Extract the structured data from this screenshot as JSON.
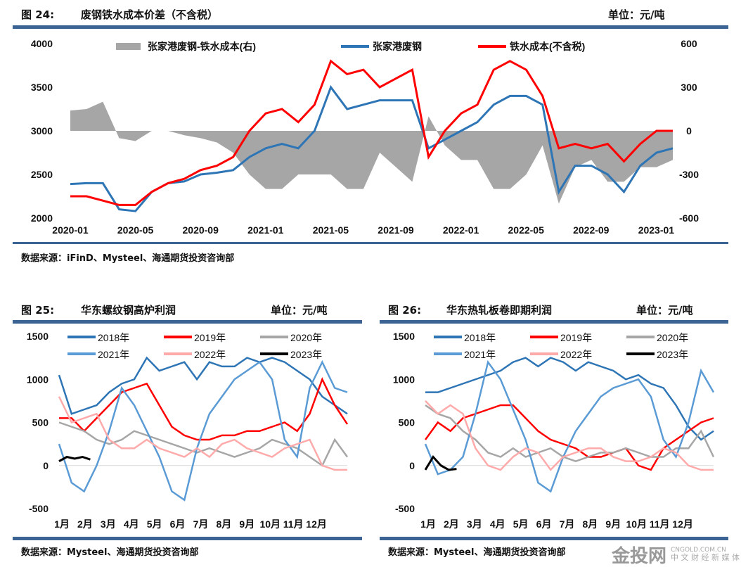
{
  "fig24": {
    "title": "图 24:",
    "name": "废钢铁水成本价差（不含税）",
    "unit": "单位：元/吨",
    "source": "数据来源：iFinD、Mysteel、海通期货投资咨询部"
  },
  "fig25": {
    "title": "图 25:",
    "name": "华东螺纹钢高炉利润",
    "unit": "单位：元/吨",
    "source": "数据来源：Mysteel、海通期货投资咨询部"
  },
  "fig26": {
    "title": "图 26:",
    "name": "华东热轧板卷即期利润",
    "unit": "单位：元/吨",
    "source": "数据来源：Mysteel、海通期货投资咨询部"
  },
  "watermark": {
    "logo": "金投网",
    "url": "CNGOLD.COM.CN",
    "tagline": "中 文 财 经 新 媒 体"
  },
  "colors": {
    "blue": "#2e75b6",
    "red": "#ff0000",
    "gray": "#a6a6a6",
    "lightblue": "#5b9bd5",
    "pink": "#ffaaaa",
    "black": "#000000"
  },
  "chart_data": [
    {
      "type": "line",
      "title": "废钢铁水成本价差（不含税）",
      "x_ticks": [
        "2020-01",
        "2020-05",
        "2020-09",
        "2021-01",
        "2021-05",
        "2021-09",
        "2022-01",
        "2022-05",
        "2022-09",
        "2023-01"
      ],
      "ylim": [
        2000,
        4000
      ],
      "y_ticks": [
        "2000",
        "2500",
        "3000",
        "3500",
        "4000"
      ],
      "y2lim": [
        -600,
        600
      ],
      "y2_ticks": [
        "-600",
        "-300",
        "0",
        "300",
        "600"
      ],
      "series": [
        {
          "name": "张家港废钢-铁水成本(右)",
          "kind": "area",
          "axis": "right",
          "values": [
            140,
            150,
            200,
            -50,
            -70,
            0,
            0,
            -30,
            -50,
            -80,
            -150,
            -300,
            -400,
            -400,
            -300,
            -300,
            -300,
            -400,
            -400,
            -150,
            -250,
            -350,
            100,
            -100,
            -200,
            -200,
            -400,
            -400,
            -300,
            -100,
            -500,
            -250,
            -200,
            -350,
            -350,
            -250,
            -250,
            -200
          ]
        },
        {
          "name": "张家港废钢",
          "kind": "line",
          "axis": "left",
          "values": [
            2390,
            2400,
            2400,
            2100,
            2080,
            2300,
            2400,
            2420,
            2500,
            2520,
            2550,
            2700,
            2800,
            2850,
            2800,
            3000,
            3500,
            3250,
            3300,
            3350,
            3350,
            3350,
            2800,
            2900,
            3000,
            3100,
            3300,
            3400,
            3400,
            3300,
            2300,
            2600,
            2600,
            2500,
            2300,
            2600,
            2750,
            2800
          ]
        },
        {
          "name": "铁水成本(不含税)",
          "kind": "line",
          "axis": "left",
          "values": [
            2250,
            2250,
            2200,
            2150,
            2150,
            2300,
            2400,
            2450,
            2550,
            2600,
            2700,
            3000,
            3200,
            3250,
            3100,
            3300,
            3800,
            3650,
            3700,
            3500,
            3600,
            3700,
            2700,
            3000,
            3200,
            3300,
            3700,
            3800,
            3700,
            3400,
            2800,
            2850,
            2800,
            2850,
            2650,
            2850,
            3000,
            3000
          ]
        }
      ]
    },
    {
      "type": "line",
      "title": "华东螺纹钢高炉利润",
      "x_ticks": [
        "1月",
        "2月",
        "3月",
        "4月",
        "5月",
        "6月",
        "7月",
        "8月",
        "9月",
        "10月",
        "11月",
        "12月"
      ],
      "ylim": [
        -500,
        1500
      ],
      "y_ticks": [
        "-500",
        "0",
        "500",
        "1000",
        "1500"
      ],
      "series": [
        {
          "name": "2018年",
          "values": [
            1050,
            600,
            650,
            700,
            850,
            950,
            1000,
            1250,
            1100,
            1150,
            1200,
            1000,
            1200,
            1150,
            1150,
            1250,
            1200,
            1250,
            1200,
            1100,
            1000,
            800,
            700,
            600
          ]
        },
        {
          "name": "2019年",
          "values": [
            550,
            550,
            400,
            550,
            700,
            850,
            900,
            950,
            700,
            450,
            350,
            300,
            300,
            350,
            350,
            400,
            400,
            450,
            500,
            400,
            600,
            1000,
            700,
            480
          ]
        },
        {
          "name": "2020年",
          "values": [
            500,
            450,
            400,
            300,
            250,
            300,
            400,
            350,
            300,
            250,
            200,
            150,
            200,
            150,
            100,
            150,
            200,
            300,
            250,
            200,
            100,
            0,
            300,
            100
          ]
        },
        {
          "name": "2021年",
          "values": [
            250,
            -200,
            -300,
            0,
            400,
            900,
            700,
            400,
            100,
            -300,
            -400,
            200,
            600,
            800,
            1000,
            1100,
            1200,
            1000,
            300,
            100,
            900,
            1200,
            900,
            850
          ]
        },
        {
          "name": "2022年",
          "values": [
            800,
            500,
            550,
            600,
            300,
            200,
            200,
            300,
            200,
            150,
            100,
            200,
            100,
            250,
            300,
            200,
            150,
            100,
            200,
            250,
            300,
            0,
            -50,
            -50
          ]
        },
        {
          "name": "2023年",
          "values": [
            50,
            100,
            80,
            100,
            70
          ]
        }
      ]
    },
    {
      "type": "line",
      "title": "华东热轧板卷即期利润",
      "x_ticks": [
        "1月",
        "2月",
        "3月",
        "4月",
        "5月",
        "6月",
        "7月",
        "8月",
        "9月",
        "10月",
        "11月",
        "12月"
      ],
      "ylim": [
        -500,
        1500
      ],
      "y_ticks": [
        "-500",
        "0",
        "500",
        "1000",
        "1500"
      ],
      "series": [
        {
          "name": "2018年",
          "values": [
            850,
            850,
            900,
            950,
            1000,
            1050,
            1100,
            1200,
            1250,
            1150,
            1250,
            1200,
            1100,
            1200,
            1150,
            1100,
            1000,
            1050,
            950,
            900,
            700,
            450,
            300,
            400
          ]
        },
        {
          "name": "2019年",
          "values": [
            300,
            500,
            400,
            550,
            600,
            650,
            700,
            700,
            550,
            400,
            300,
            250,
            200,
            100,
            100,
            150,
            200,
            0,
            -50,
            200,
            300,
            400,
            500,
            550
          ]
        },
        {
          "name": "2020年",
          "values": [
            700,
            600,
            550,
            400,
            300,
            150,
            100,
            200,
            100,
            150,
            200,
            100,
            50,
            100,
            150,
            150,
            200,
            150,
            100,
            100,
            200,
            200,
            400,
            100
          ]
        },
        {
          "name": "2021年",
          "values": [
            250,
            -100,
            -50,
            100,
            600,
            1200,
            1000,
            650,
            300,
            -200,
            -300,
            100,
            400,
            600,
            800,
            900,
            950,
            1000,
            800,
            300,
            100,
            500,
            1100,
            850
          ]
        },
        {
          "name": "2022年",
          "values": [
            750,
            600,
            700,
            600,
            200,
            0,
            -50,
            100,
            200,
            150,
            -50,
            100,
            150,
            200,
            200,
            100,
            50,
            50,
            100,
            200,
            150,
            0,
            -50,
            -50
          ]
        },
        {
          "name": "2023年",
          "values": [
            -50,
            100,
            0,
            -50,
            -40
          ]
        }
      ]
    }
  ]
}
